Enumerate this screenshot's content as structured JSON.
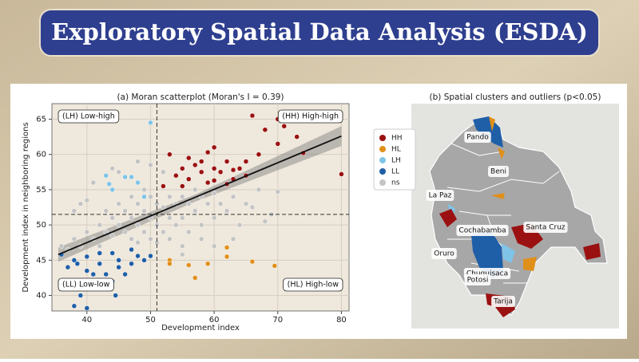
{
  "header": {
    "title": "Exploratory Spatial Data Analysis (ESDA)"
  },
  "chart_data": {
    "type": "scatter",
    "title": "(a) Moran scatterplot (Moran's I = 0.39)",
    "x_label": "Development index",
    "y_label": "Development index in neighboring regions",
    "xlim": [
      34.5,
      81.2
    ],
    "ylim": [
      37.8,
      67.2
    ],
    "xticks": [
      40,
      50,
      60,
      70,
      80
    ],
    "yticks": [
      40,
      45,
      50,
      55,
      60,
      65
    ],
    "grid": true,
    "mean_x": 51,
    "mean_y": 51.5,
    "regression": {
      "x": [
        35.5,
        80
      ],
      "y": [
        45.8,
        62.6
      ]
    },
    "confidence_band": {
      "x": [
        35.5,
        57,
        80
      ],
      "lower": [
        44.8,
        53.3,
        61.2
      ],
      "upper": [
        46.8,
        54.3,
        64.0
      ]
    },
    "annotations": [
      "(LH) Low-high",
      "(HH) High-high",
      "(LL) Low-low",
      "(HL) High-low"
    ],
    "series": [
      {
        "name": "HH",
        "color": "#9b1111",
        "x": [
          66,
          70,
          71,
          68,
          73,
          70,
          60,
          59,
          53,
          56,
          62,
          58,
          55,
          57,
          60,
          64,
          67,
          61,
          54,
          58,
          63,
          56,
          59,
          65,
          52,
          55,
          60,
          62,
          80,
          74,
          65,
          63
        ],
        "values": [
          65.5,
          65,
          64,
          63.5,
          62.5,
          61.5,
          61,
          60.3,
          60,
          59.5,
          59,
          59,
          58,
          58.5,
          58,
          58,
          60,
          57.5,
          57,
          57.5,
          56.5,
          56.5,
          56,
          57,
          55.5,
          55.5,
          56.3,
          55.8,
          57.2,
          60.2,
          59,
          57.8
        ]
      },
      {
        "name": "HL",
        "color": "#e0901a",
        "x": [
          53,
          53,
          56,
          59,
          62,
          66,
          69.5,
          57,
          62
        ],
        "values": [
          45,
          44.5,
          44.3,
          44.5,
          46.8,
          44.8,
          44.2,
          42.5,
          45.5
        ]
      },
      {
        "name": "LH",
        "color": "#7fc4e8",
        "x": [
          50,
          43,
          46,
          47,
          48,
          44,
          49,
          43.5
        ],
        "values": [
          64.5,
          57,
          56.8,
          56.8,
          56,
          55,
          54,
          55.8
        ]
      },
      {
        "name": "LL",
        "color": "#1f5fa8",
        "x": [
          36,
          38,
          40,
          42,
          44,
          45,
          47,
          48,
          49,
          50,
          40,
          41,
          43,
          45,
          46,
          42,
          44,
          39,
          41,
          43,
          38,
          40,
          39,
          42,
          47,
          37,
          38.5,
          44.5
        ],
        "values": [
          45.8,
          45,
          45.5,
          46,
          46,
          45,
          46.5,
          45.6,
          45,
          45.6,
          43.5,
          43,
          43,
          44,
          43,
          42,
          42,
          42,
          41,
          41.5,
          38.5,
          38.2,
          40,
          44.5,
          44.5,
          44,
          44.5,
          40
        ]
      },
      {
        "name": "ns",
        "color": "#c4c4c4",
        "x": [
          36,
          37,
          38,
          39,
          40,
          41,
          42,
          42,
          43,
          43,
          44,
          44,
          45,
          45,
          46,
          46,
          47,
          47,
          47,
          48,
          48,
          48,
          49,
          49,
          49,
          50,
          50,
          50,
          51,
          51,
          51,
          52,
          52,
          53,
          53,
          53,
          54,
          54,
          55,
          55,
          55,
          56,
          56,
          57,
          57,
          58,
          58,
          59,
          60,
          60,
          61,
          62,
          63,
          64,
          65,
          66,
          67,
          69,
          70,
          38,
          40,
          41,
          44,
          45,
          39,
          55,
          60,
          63,
          48,
          50,
          52,
          68,
          58
        ],
        "values": [
          47,
          46.5,
          48,
          47,
          49,
          48,
          50,
          47,
          52,
          49,
          51,
          48.5,
          53,
          50,
          52,
          49,
          54,
          51,
          48,
          53,
          50,
          47.5,
          55,
          52,
          49,
          54,
          51,
          48,
          53,
          50,
          47.5,
          52.5,
          49,
          54,
          51,
          48,
          53,
          50,
          54,
          51,
          47,
          53,
          49,
          55,
          52,
          54,
          50,
          53,
          54.5,
          51,
          53,
          52,
          54,
          50,
          53,
          52.5,
          55,
          51.5,
          54.7,
          52,
          53.5,
          56,
          58,
          57.5,
          53,
          45.8,
          47,
          48,
          59,
          58.5,
          57.5,
          50.5,
          48
        ]
      }
    ]
  },
  "map": {
    "title": "(b) Spatial clusters and outliers (p<0.05)",
    "regions": [
      "Pando",
      "Beni",
      "La Paz",
      "Cochabamba",
      "Santa Cruz",
      "Oruro",
      "Chuquisaca",
      "Potosi",
      "Tarija"
    ]
  }
}
